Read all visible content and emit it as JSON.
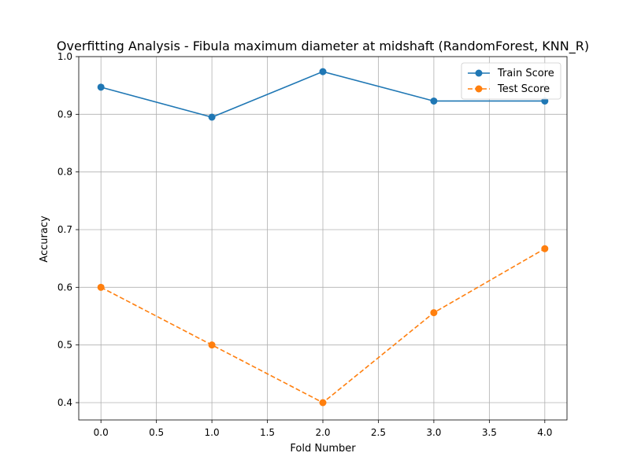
{
  "chart_data": {
    "type": "line",
    "title": "Overfitting Analysis - Fibula maximum diameter at midshaft (RandomForest, KNN_R)",
    "xlabel": "Fold Number",
    "ylabel": "Accuracy",
    "xlim": [
      -0.2,
      4.2
    ],
    "ylim": [
      0.37,
      1.0
    ],
    "xticks": [
      0.0,
      0.5,
      1.0,
      1.5,
      2.0,
      2.5,
      3.0,
      3.5,
      4.0
    ],
    "xtick_labels": [
      "0.0",
      "0.5",
      "1.0",
      "1.5",
      "2.0",
      "2.5",
      "3.0",
      "3.5",
      "4.0"
    ],
    "yticks": [
      0.4,
      0.5,
      0.6,
      0.7,
      0.8,
      0.9,
      1.0
    ],
    "ytick_labels": [
      "0.4",
      "0.5",
      "0.6",
      "0.7",
      "0.8",
      "0.9",
      "1.0"
    ],
    "grid": true,
    "legend_position": "top-right",
    "x": [
      0,
      1,
      2,
      3,
      4
    ],
    "series": [
      {
        "name": "Train Score",
        "values": [
          0.947,
          0.895,
          0.974,
          0.923,
          0.923
        ],
        "color": "#1f77b4",
        "linestyle": "solid",
        "marker": "circle"
      },
      {
        "name": "Test Score",
        "values": [
          0.6,
          0.5,
          0.4,
          0.556,
          0.667
        ],
        "color": "#ff7f0e",
        "linestyle": "dashed",
        "marker": "circle"
      }
    ]
  }
}
